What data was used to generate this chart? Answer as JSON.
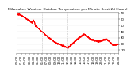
{
  "title": "Milwaukee Weather Outdoor Temperature per Minute (Last 24 Hours)",
  "line_color": "#FF0000",
  "bg_color": "#FFFFFF",
  "plot_bg_color": "#FFFFFF",
  "vline_color": "#AAAAAA",
  "ylim": [
    5,
    72
  ],
  "yticks": [
    10,
    20,
    30,
    40,
    50,
    60,
    70
  ],
  "num_points": 1440,
  "vline_positions": [
    360,
    720
  ],
  "title_fontsize": 3.2,
  "tick_fontsize": 2.8,
  "marker_size": 0.6,
  "line_width": 0.4,
  "num_xticks": 25
}
